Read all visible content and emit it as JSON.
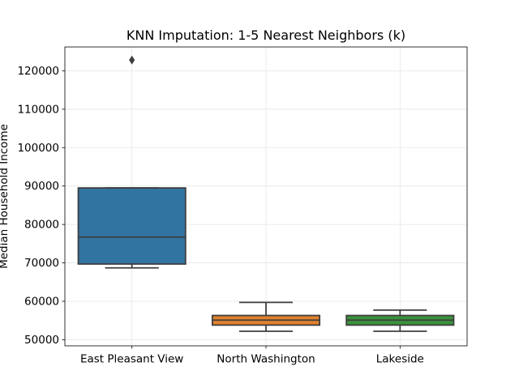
{
  "chart_data": {
    "type": "box",
    "title": "KNN Imputation: 1-5 Nearest Neighbors (k)",
    "xlabel": "",
    "ylabel": "Median Household Income",
    "ylim": [
      48400,
      126200
    ],
    "yticks": [
      50000,
      60000,
      70000,
      80000,
      90000,
      100000,
      110000,
      120000
    ],
    "ytick_labels": [
      "50000",
      "60000",
      "70000",
      "80000",
      "90000",
      "100000",
      "110000",
      "120000"
    ],
    "grid": true,
    "categories": [
      "East Pleasant View",
      "North Washington",
      "Lakeside"
    ],
    "boxes": [
      {
        "category": "East Pleasant View",
        "color": "#3274a1",
        "whisker_low": 68700,
        "q1": 69700,
        "median": 76700,
        "q3": 89500,
        "whisker_high": 89500,
        "outliers": [
          122800
        ]
      },
      {
        "category": "North Washington",
        "color": "#e1812c",
        "whisker_low": 52200,
        "q1": 53800,
        "median": 55100,
        "q3": 56300,
        "whisker_high": 59700,
        "outliers": []
      },
      {
        "category": "Lakeside",
        "color": "#3a923a",
        "whisker_low": 52200,
        "q1": 53800,
        "median": 55100,
        "q3": 56300,
        "whisker_high": 57700,
        "outliers": []
      }
    ]
  }
}
